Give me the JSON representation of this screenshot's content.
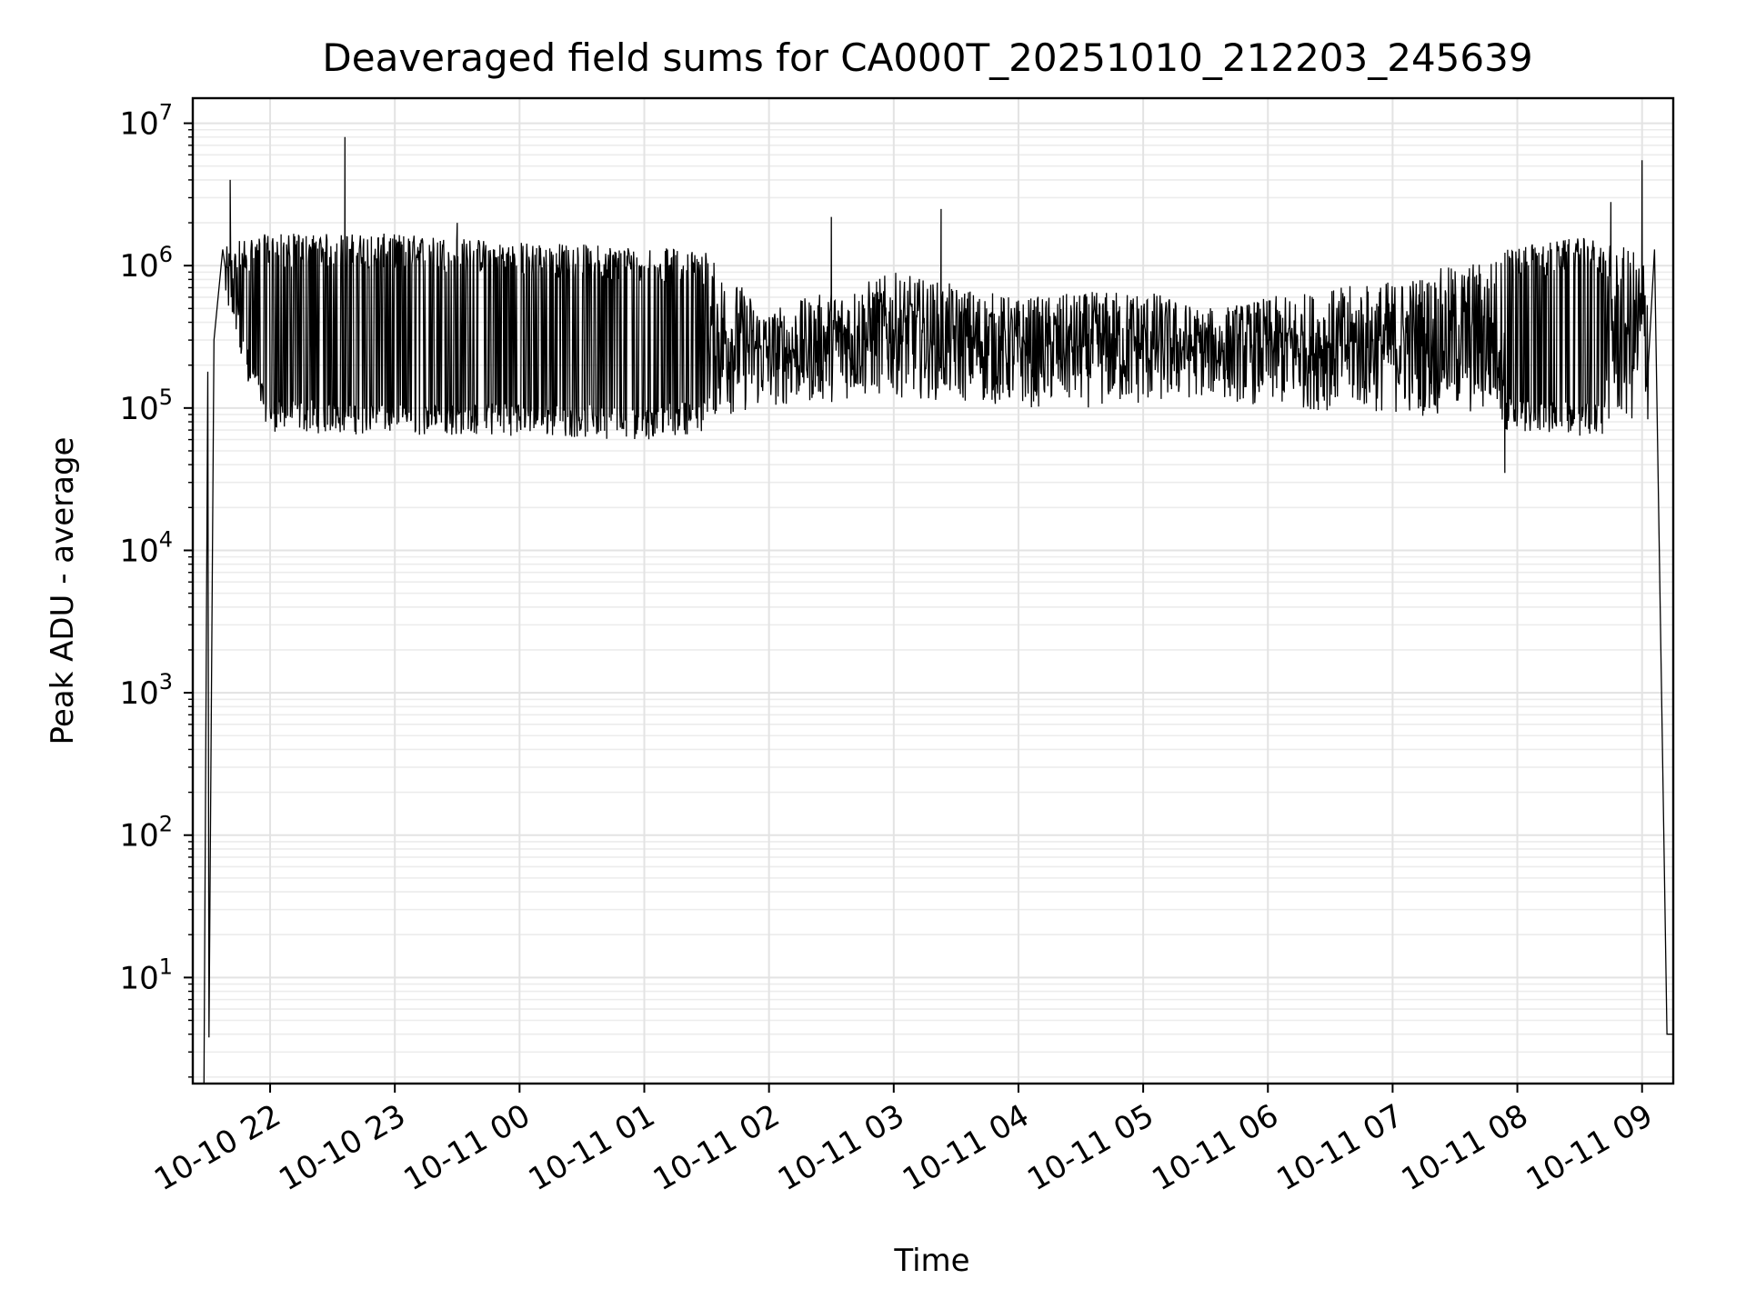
{
  "chart_data": {
    "type": "line",
    "title": "Deaveraged field sums for CA000T_20251010_212203_245639",
    "xlabel": "Time",
    "ylabel": "Peak ADU - average",
    "yscale": "log",
    "ylim": [
      1.8,
      15000000
    ],
    "grid": true,
    "x_start_hours_from_2200": -0.62,
    "x_end_hours_from_2200": 11.25,
    "x_tick_labels": [
      "10-10 22",
      "10-10 23",
      "10-11 00",
      "10-11 01",
      "10-11 02",
      "10-11 03",
      "10-11 04",
      "10-11 05",
      "10-11 06",
      "10-11 07",
      "10-11 08",
      "10-11 09"
    ],
    "y_tick_labels": [
      {
        "base": "10",
        "exp": "1"
      },
      {
        "base": "10",
        "exp": "2"
      },
      {
        "base": "10",
        "exp": "3"
      },
      {
        "base": "10",
        "exp": "4"
      },
      {
        "base": "10",
        "exp": "5"
      },
      {
        "base": "10",
        "exp": "6"
      },
      {
        "base": "10",
        "exp": "7"
      }
    ],
    "series": [
      {
        "name": "Deaveraged field sum",
        "color": "#000000",
        "envelope": [
          {
            "h": -0.5,
            "low": 3.8,
            "high": 180000
          },
          {
            "h": -0.4,
            "low": 600000,
            "high": 1300000
          },
          {
            "h": -0.25,
            "low": 250000,
            "high": 1500000
          },
          {
            "h": 0.0,
            "low": 80000,
            "high": 1600000
          },
          {
            "h": 1.0,
            "low": 75000,
            "high": 1600000
          },
          {
            "h": 2.0,
            "low": 75000,
            "high": 1400000
          },
          {
            "h": 3.0,
            "low": 70000,
            "high": 1300000
          },
          {
            "h": 3.5,
            "low": 80000,
            "high": 1200000
          },
          {
            "h": 4.0,
            "low": 100000,
            "high": 500000
          },
          {
            "h": 5.0,
            "low": 120000,
            "high": 900000
          },
          {
            "h": 6.0,
            "low": 100000,
            "high": 600000
          },
          {
            "h": 7.0,
            "low": 100000,
            "high": 700000
          },
          {
            "h": 7.5,
            "low": 120000,
            "high": 500000
          },
          {
            "h": 8.0,
            "low": 100000,
            "high": 600000
          },
          {
            "h": 9.0,
            "low": 90000,
            "high": 800000
          },
          {
            "h": 10.0,
            "low": 80000,
            "high": 1300000
          },
          {
            "h": 10.5,
            "low": 75000,
            "high": 1500000
          },
          {
            "h": 11.0,
            "low": 75000,
            "high": 1300000
          }
        ],
        "spikes": [
          {
            "h": -0.32,
            "value": 4000000
          },
          {
            "h": 0.6,
            "value": 8000000
          },
          {
            "h": 1.5,
            "value": 2000000
          },
          {
            "h": 4.5,
            "value": 2200000
          },
          {
            "h": 5.38,
            "value": 2500000
          },
          {
            "h": 9.9,
            "value": 35000
          },
          {
            "h": 10.75,
            "value": 2800000
          },
          {
            "h": 11.0,
            "value": 5500000
          }
        ],
        "tail": [
          {
            "h": 11.1,
            "value": 1300000
          },
          {
            "h": 11.2,
            "value": 4
          },
          {
            "h": 11.25,
            "value": 4
          }
        ]
      }
    ]
  }
}
